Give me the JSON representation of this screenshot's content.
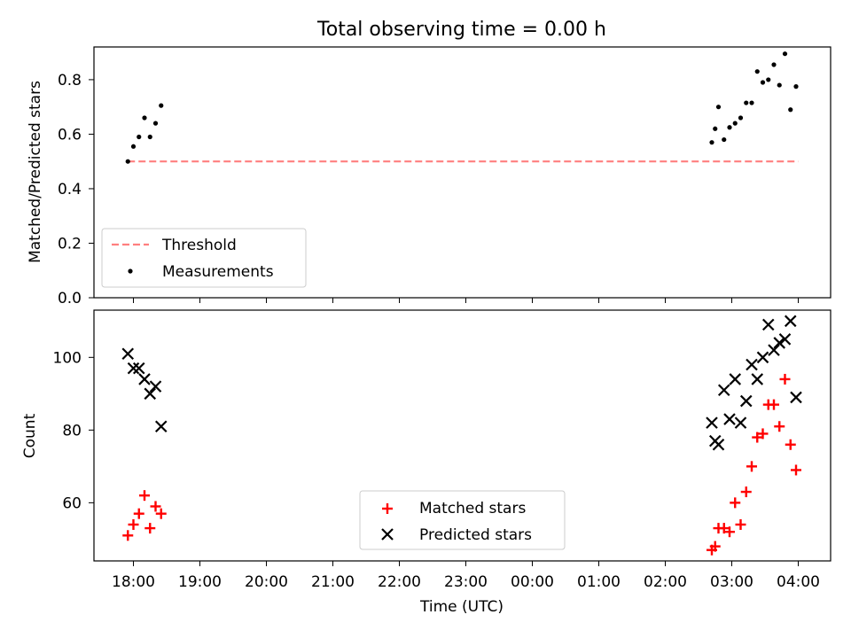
{
  "chart_data": [
    {
      "type": "scatter",
      "title": "Total observing time = 0.00 h",
      "ylabel": "Matched/Predicted stars",
      "xlabel": "",
      "ylim": [
        0.0,
        0.92
      ],
      "yticks": [
        0.0,
        0.2,
        0.4,
        0.6,
        0.8
      ],
      "ytick_labels": [
        "0.0",
        "0.2",
        "0.4",
        "0.6",
        "0.8"
      ],
      "legend_position": "lower-left",
      "threshold": {
        "name": "Threshold",
        "value": 0.5,
        "x_start": "17:55",
        "x_end": "04:00",
        "style": "dashed",
        "color": "#ff7f7f"
      },
      "series": [
        {
          "name": "Measurements",
          "marker": "dot",
          "color": "#000000",
          "x": [
            "17:55",
            "18:00",
            "18:05",
            "18:10",
            "18:15",
            "18:20",
            "18:25",
            "02:42",
            "02:45",
            "02:48",
            "02:53",
            "02:58",
            "03:03",
            "03:08",
            "03:13",
            "03:18",
            "03:23",
            "03:28",
            "03:33",
            "03:38",
            "03:43",
            "03:48",
            "03:53",
            "03:58"
          ],
          "y": [
            0.5,
            0.555,
            0.59,
            0.66,
            0.59,
            0.64,
            0.705,
            0.57,
            0.62,
            0.7,
            0.58,
            0.625,
            0.64,
            0.66,
            0.715,
            0.715,
            0.83,
            0.79,
            0.8,
            0.855,
            0.78,
            0.895,
            0.69,
            0.775
          ]
        }
      ]
    },
    {
      "type": "scatter",
      "title": "",
      "ylabel": "Count",
      "xlabel": "Time (UTC)",
      "ylim": [
        44,
        113
      ],
      "yticks": [
        60,
        80,
        100
      ],
      "ytick_labels": [
        "60",
        "80",
        "100"
      ],
      "xticks": [
        "18:00",
        "19:00",
        "20:00",
        "21:00",
        "22:00",
        "23:00",
        "00:00",
        "01:00",
        "02:00",
        "03:00",
        "04:00"
      ],
      "legend_position": "lower-center",
      "series": [
        {
          "name": "Matched stars",
          "marker": "plus",
          "color": "#ff0000",
          "x": [
            "17:55",
            "18:00",
            "18:05",
            "18:10",
            "18:15",
            "18:20",
            "18:25",
            "02:42",
            "02:45",
            "02:48",
            "02:53",
            "02:58",
            "03:03",
            "03:08",
            "03:13",
            "03:18",
            "03:23",
            "03:28",
            "03:33",
            "03:38",
            "03:43",
            "03:48",
            "03:53",
            "03:58"
          ],
          "y": [
            51,
            54,
            57,
            62,
            53,
            59,
            57,
            47,
            48,
            53,
            53,
            52,
            60,
            54,
            63,
            70,
            78,
            79,
            87,
            87,
            81,
            94,
            76,
            69
          ]
        },
        {
          "name": "Predicted stars",
          "marker": "x",
          "color": "#000000",
          "x": [
            "17:55",
            "18:00",
            "18:05",
            "18:10",
            "18:15",
            "18:20",
            "18:25",
            "02:42",
            "02:45",
            "02:48",
            "02:53",
            "02:58",
            "03:03",
            "03:08",
            "03:13",
            "03:18",
            "03:23",
            "03:28",
            "03:33",
            "03:38",
            "03:43",
            "03:48",
            "03:53",
            "03:58"
          ],
          "y": [
            101,
            97,
            97,
            94,
            90,
            92,
            81,
            82,
            77,
            76,
            91,
            83,
            94,
            82,
            88,
            98,
            94,
            100,
            109,
            102,
            104,
            105,
            110,
            89
          ]
        }
      ]
    }
  ]
}
